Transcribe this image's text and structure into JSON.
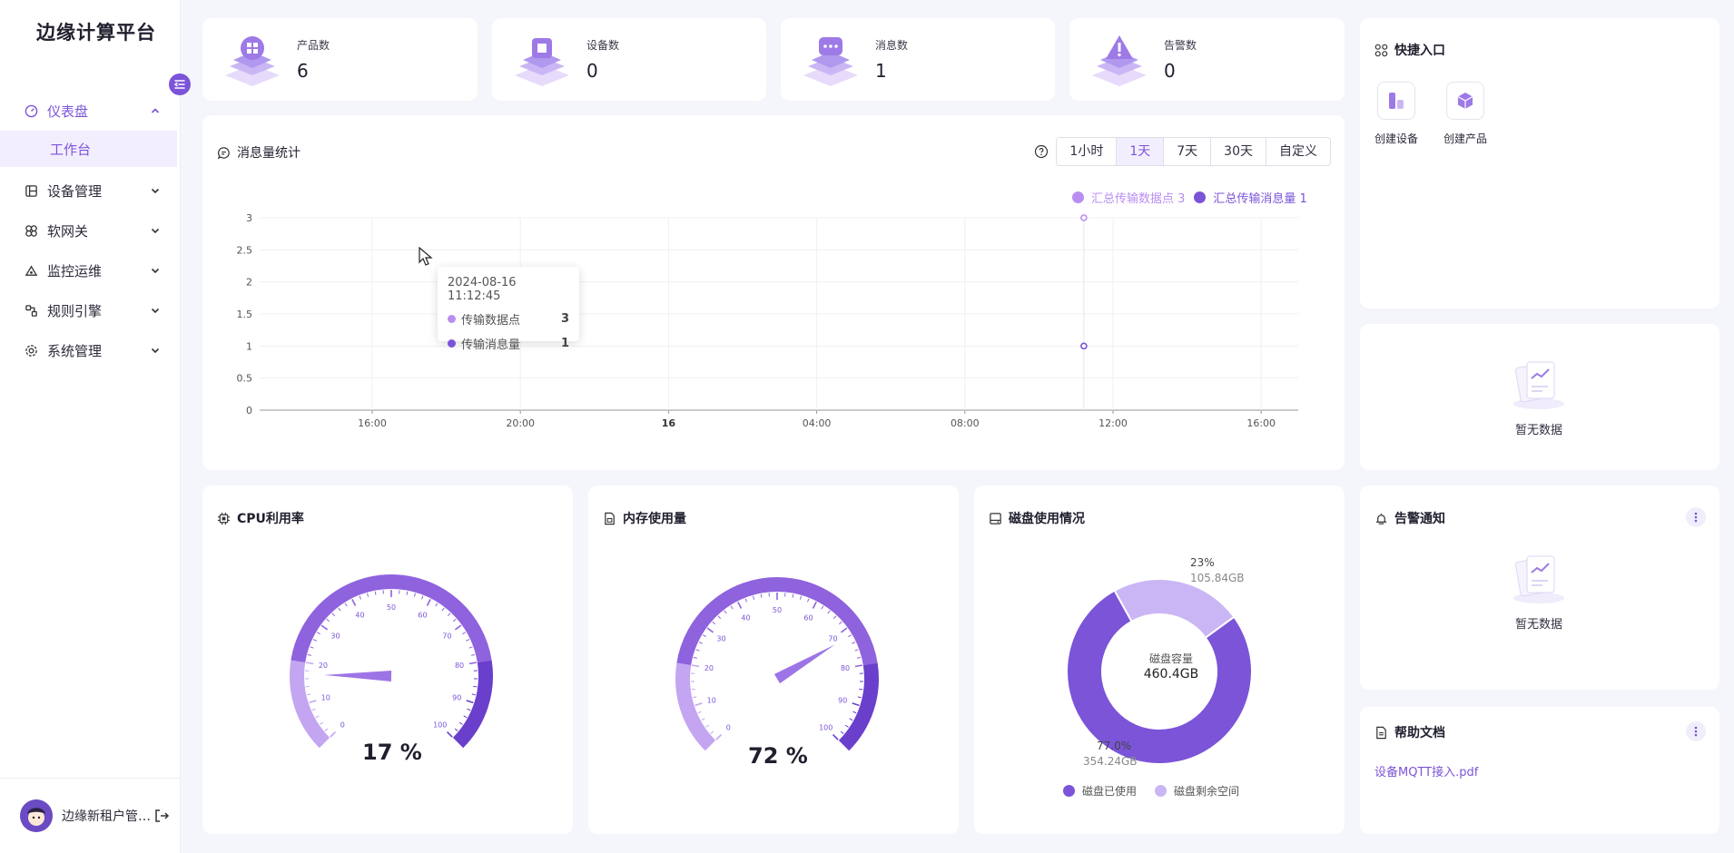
{
  "app": {
    "title": "边缘计算平台"
  },
  "sidebar": {
    "items": [
      {
        "label": "仪表盘",
        "icon": "dashboard-icon",
        "expanded": true,
        "active": true
      },
      {
        "label": "设备管理",
        "icon": "device-icon"
      },
      {
        "label": "软网关",
        "icon": "gateway-icon"
      },
      {
        "label": "监控运维",
        "icon": "monitor-icon"
      },
      {
        "label": "规则引擎",
        "icon": "rule-icon"
      },
      {
        "label": "系统管理",
        "icon": "settings-icon"
      }
    ],
    "submenu": [
      {
        "label": "工作台",
        "active": true
      }
    ],
    "user": {
      "name": "边缘新租户管…"
    }
  },
  "stats": [
    {
      "label": "产品数",
      "value": "6"
    },
    {
      "label": "设备数",
      "value": "0"
    },
    {
      "label": "消息数",
      "value": "1"
    },
    {
      "label": "告警数",
      "value": "0"
    }
  ],
  "message_chart": {
    "title": "消息量统计",
    "ranges": [
      "1小时",
      "1天",
      "7天",
      "30天",
      "自定义"
    ],
    "active_range": "1天",
    "legend": [
      "汇总传输数据点 3",
      "汇总传输消息量 1"
    ],
    "tooltip": {
      "time": "2024-08-16 11:12:45",
      "rows": [
        {
          "label": "传输数据点",
          "value": "3"
        },
        {
          "label": "传输消息量",
          "value": "1"
        }
      ]
    }
  },
  "chart_data": {
    "type": "scatter",
    "x_ticks": [
      "16:00",
      "20:00",
      "16",
      "04:00",
      "08:00",
      "12:00",
      "16:00"
    ],
    "y_ticks": [
      "0",
      "0.5",
      "1",
      "1.5",
      "2",
      "2.5",
      "3"
    ],
    "ylim": [
      0,
      3
    ],
    "series": [
      {
        "name": "汇总传输数据点",
        "points": [
          {
            "x": "2024-08-16 11:12:45",
            "y": 3
          }
        ],
        "color": "#b98ef0"
      },
      {
        "name": "汇总传输消息量",
        "points": [
          {
            "x": "2024-08-16 11:12:45",
            "y": 1
          }
        ],
        "color": "#7b54d8"
      }
    ]
  },
  "quick_access": {
    "title": "快捷入口",
    "items": [
      {
        "label": "创建设备"
      },
      {
        "label": "创建产品"
      }
    ]
  },
  "empty_text": "暂无数据",
  "cpu": {
    "title": "CPU利用率",
    "value": 17,
    "display": "17 %"
  },
  "memory": {
    "title": "内存使用量",
    "value": 72,
    "display": "72 %"
  },
  "gauge_ticks": [
    "0",
    "10",
    "20",
    "30",
    "40",
    "50",
    "60",
    "70",
    "80",
    "90",
    "100"
  ],
  "disk": {
    "title": "磁盘使用情况",
    "center_label": "磁盘容量",
    "center_value": "460.4GB",
    "used": {
      "label": "磁盘已使用",
      "percent": "77.0%",
      "size": "354.24GB",
      "value": 77,
      "color": "#7b54d8"
    },
    "free": {
      "label": "磁盘剩余空间",
      "percent": "23%",
      "size": "105.84GB",
      "value": 23,
      "color": "#cbb6f5"
    }
  },
  "alarm": {
    "title": "告警通知"
  },
  "docs": {
    "title": "帮助文档",
    "items": [
      {
        "label": "设备MQTT接入.pdf"
      }
    ]
  },
  "colors": {
    "accent": "#7b54d8",
    "accent_light": "#b98ef0",
    "bg": "#f5f6fb"
  }
}
